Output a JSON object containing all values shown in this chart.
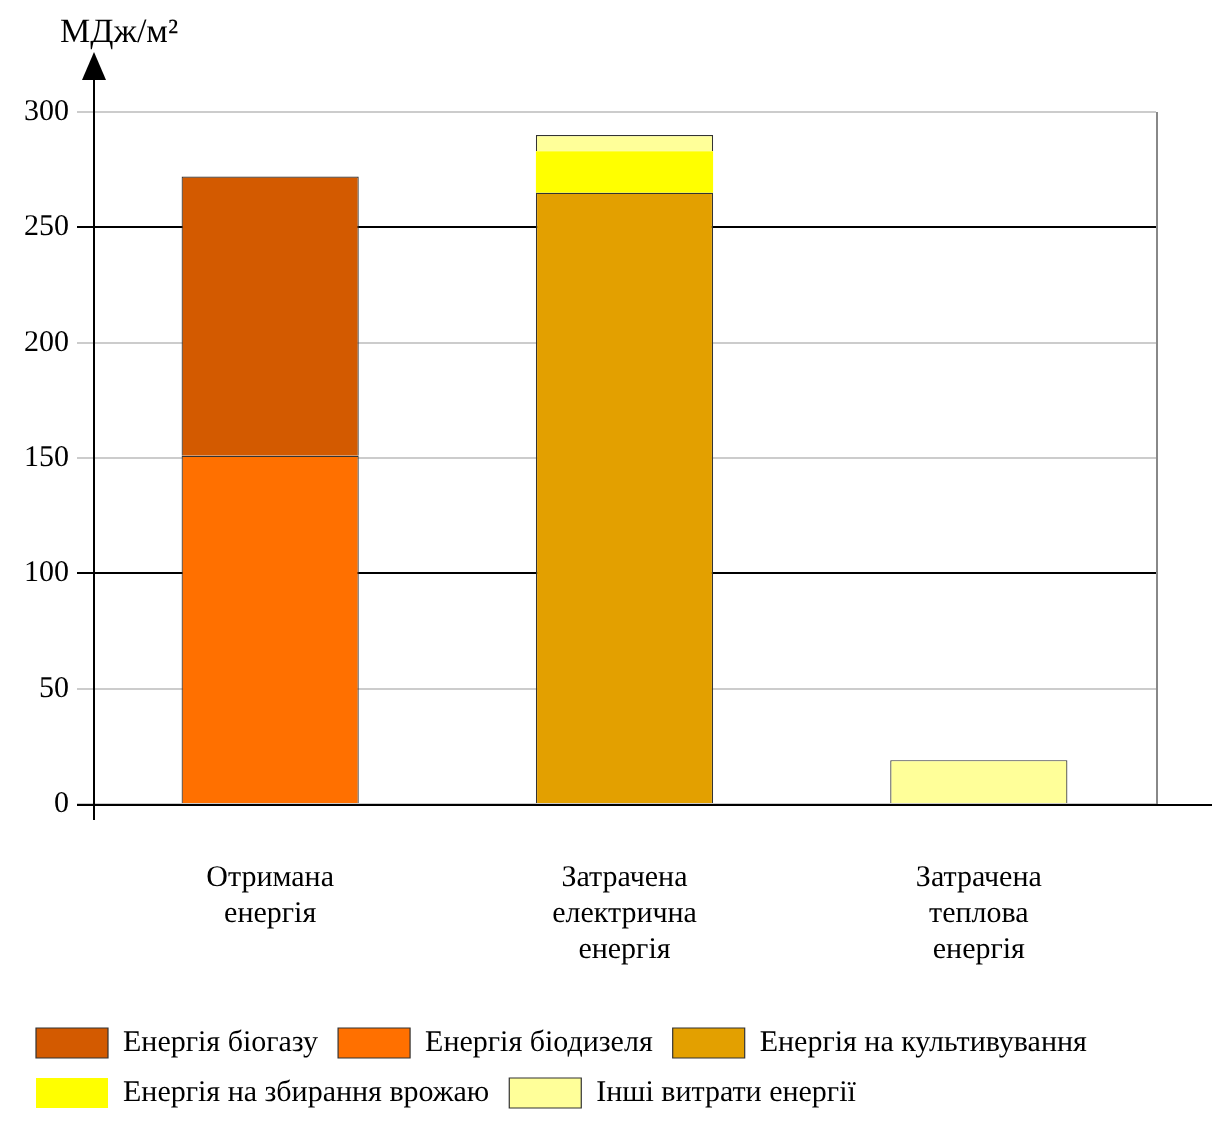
{
  "chart_data": {
    "type": "bar",
    "ylabel": "МДж/м²",
    "categories": [
      "Отримана енергія",
      "Затрачена електрична енергія",
      "Затрачена теплова енергія"
    ],
    "stacked": true,
    "ylim": [
      0,
      300
    ],
    "yticks": [
      0,
      50,
      100,
      150,
      200,
      250,
      300
    ],
    "grid": "y",
    "legend": "bottom",
    "series": [
      {
        "name": "Енергія біодизеля",
        "color": "#ff7000",
        "values": [
          151,
          null,
          null
        ]
      },
      {
        "name": "Енергія біогазу",
        "color": "#d35a00",
        "values": [
          121,
          null,
          null
        ]
      },
      {
        "name": "Енергія на культивування",
        "color": "#e3a000",
        "values": [
          null,
          265,
          null
        ]
      },
      {
        "name": "Енергія на збирання врожаю",
        "color": "#ffff00",
        "values": [
          null,
          18,
          null
        ]
      },
      {
        "name": "Інші витрати енергії",
        "color": "#ffff99",
        "values": [
          null,
          7,
          19
        ]
      }
    ]
  }
}
